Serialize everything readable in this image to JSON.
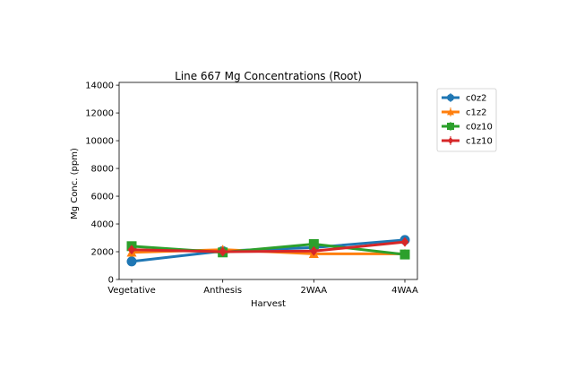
{
  "chart_data": {
    "type": "line",
    "title": "Line 667 Mg Concentrations (Root)",
    "xlabel": "Harvest",
    "ylabel": "Mg Conc. (ppm)",
    "categories": [
      "Vegetative",
      "Anthesis",
      "2WAA",
      "4WAA"
    ],
    "ylim": [
      0,
      14200
    ],
    "yticks": [
      0,
      2000,
      4000,
      6000,
      8000,
      10000,
      12000,
      14000
    ],
    "ytick_labels": [
      "0",
      "2000",
      "4000",
      "6000",
      "8000",
      "10000",
      "12000",
      "14000"
    ],
    "grid": false,
    "legend_position": "outside-right",
    "series": [
      {
        "name": "c0z2",
        "color": "#1f77b4",
        "marker": "circle",
        "values": [
          1300,
          2050,
          2300,
          2850
        ]
      },
      {
        "name": "c1z2",
        "color": "#ff7f0e",
        "marker": "triangle",
        "values": [
          1950,
          2150,
          1850,
          1850
        ]
      },
      {
        "name": "c0z10",
        "color": "#2ca02c",
        "marker": "square",
        "values": [
          2400,
          1950,
          2550,
          1800
        ]
      },
      {
        "name": "c1z10",
        "color": "#d62728",
        "marker": "diamond",
        "values": [
          2150,
          2000,
          2050,
          2700
        ]
      }
    ]
  }
}
